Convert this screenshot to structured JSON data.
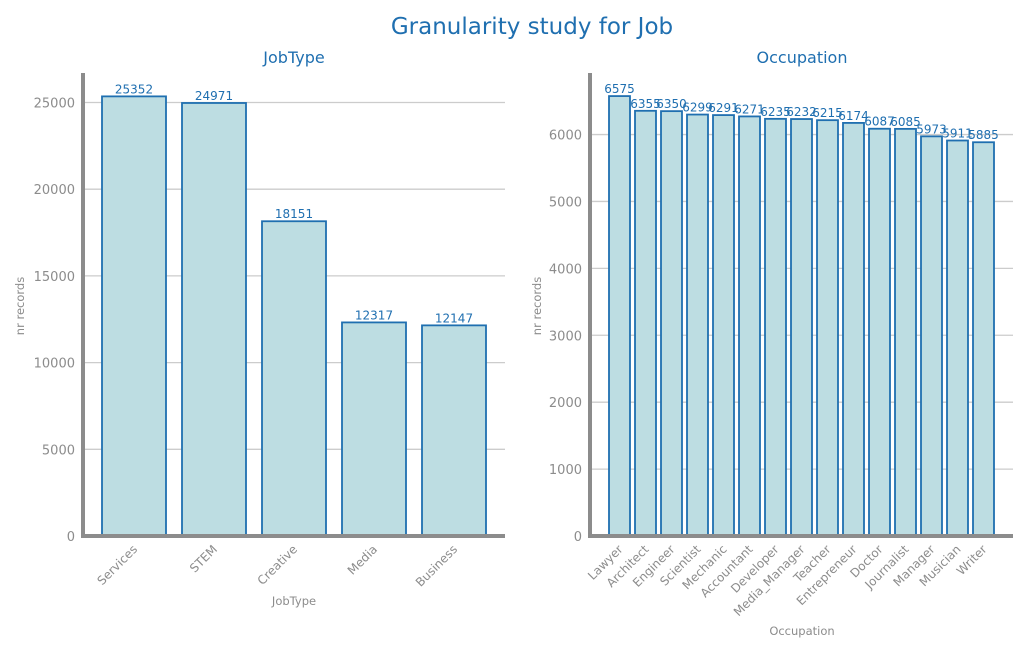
{
  "figure": {
    "title": "Granularity study for Job",
    "colors": {
      "title": "#1f6fb0",
      "bar_fill": "#bddde2",
      "bar_edge": "#1f6fb0",
      "axis": "#8c8c8c",
      "grid": "#cccccc"
    }
  },
  "chart_data": [
    {
      "type": "bar",
      "title": "JobType",
      "xlabel": "JobType",
      "ylabel": "nr records",
      "categories": [
        "Services",
        "STEM",
        "Creative",
        "Media",
        "Business"
      ],
      "values": [
        25352,
        24971,
        18151,
        12317,
        12147
      ],
      "ylim": [
        0,
        26700
      ],
      "yticks": [
        0,
        5000,
        10000,
        15000,
        20000,
        25000
      ],
      "grid": "horizontal",
      "legend": "none"
    },
    {
      "type": "bar",
      "title": "Occupation",
      "xlabel": "Occupation",
      "ylabel": "nr records",
      "categories": [
        "Lawyer",
        "Architect",
        "Engineer",
        "Scientist",
        "Mechanic",
        "Accountant",
        "Developer",
        "Media_Manager",
        "Teacher",
        "Entrepreneur",
        "Doctor",
        "Journalist",
        "Manager",
        "Musician",
        "Writer"
      ],
      "values": [
        6575,
        6355,
        6350,
        6299,
        6291,
        6271,
        6235,
        6232,
        6215,
        6174,
        6087,
        6085,
        5973,
        5911,
        5885
      ],
      "ylim": [
        0,
        6920
      ],
      "yticks": [
        0,
        1000,
        2000,
        3000,
        4000,
        5000,
        6000
      ],
      "grid": "horizontal",
      "legend": "none"
    }
  ]
}
